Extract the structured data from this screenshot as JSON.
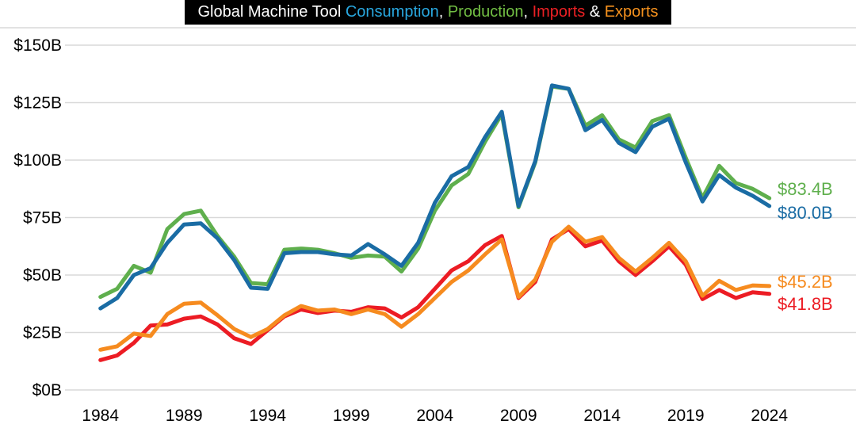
{
  "title": {
    "segments": [
      {
        "text": "Global Machine Tool ",
        "color": "#FFFFFF"
      },
      {
        "text": "Consumption",
        "color": "#29A8E0"
      },
      {
        "text": ", ",
        "color": "#FFFFFF"
      },
      {
        "text": "Production",
        "color": "#72BF44"
      },
      {
        "text": ", ",
        "color": "#FFFFFF"
      },
      {
        "text": "Imports",
        "color": "#EC2024"
      },
      {
        "text": " & ",
        "color": "#FFFFFF"
      },
      {
        "text": "Exports",
        "color": "#F6921E"
      }
    ],
    "background_color": "#000000"
  },
  "chart_data": {
    "type": "line",
    "x": [
      1984,
      1985,
      1986,
      1987,
      1988,
      1989,
      1990,
      1991,
      1992,
      1993,
      1994,
      1995,
      1996,
      1997,
      1998,
      1999,
      2000,
      2001,
      2002,
      2003,
      2004,
      2005,
      2006,
      2007,
      2008,
      2009,
      2010,
      2011,
      2012,
      2013,
      2014,
      2015,
      2016,
      2017,
      2018,
      2019,
      2020,
      2021,
      2022,
      2023,
      2024
    ],
    "series": [
      {
        "name": "Production",
        "color": "#5FAF4D",
        "end_label": "$83.4B",
        "values": [
          40.5,
          44,
          54,
          51,
          70,
          76.5,
          78,
          67,
          58,
          46.5,
          46,
          61,
          61.5,
          61,
          59.5,
          57.5,
          58.5,
          58,
          51.5,
          61.5,
          78,
          89,
          94,
          108,
          120,
          79.5,
          99,
          132,
          131,
          115,
          119.5,
          109,
          105.5,
          117,
          119.5,
          101,
          83.5,
          97.5,
          90,
          87.5,
          83.4
        ]
      },
      {
        "name": "Consumption",
        "color": "#1A6CA4",
        "end_label": "$80.0B",
        "values": [
          35.5,
          40,
          50,
          53,
          64,
          72,
          72.5,
          66,
          56.5,
          44.5,
          44,
          59.5,
          60,
          60,
          59,
          58.5,
          63.5,
          59,
          54,
          64,
          81.5,
          93,
          97,
          110,
          121,
          80,
          99.5,
          132.5,
          131,
          113,
          117.5,
          107.5,
          103.5,
          114.5,
          118,
          99,
          82,
          93.5,
          88,
          84.5,
          80
        ]
      },
      {
        "name": "Imports",
        "color": "#EC1C24",
        "end_label": "$41.8B",
        "values": [
          13,
          15,
          20.5,
          28,
          28.5,
          31,
          32,
          28.5,
          22.5,
          20,
          26,
          32,
          35,
          33.5,
          34.5,
          34,
          36,
          35.5,
          31.5,
          36,
          44,
          52,
          56,
          63,
          67,
          40,
          47,
          65.5,
          70,
          62.5,
          65,
          56,
          50,
          56,
          62.5,
          54.5,
          39.5,
          43.5,
          40,
          42.5,
          41.8
        ]
      },
      {
        "name": "Exports",
        "color": "#F68B1F",
        "end_label": "$45.2B",
        "values": [
          17.5,
          19,
          24.5,
          23.5,
          33,
          37.5,
          38,
          32.5,
          26.5,
          23,
          26.5,
          32.5,
          36.5,
          34.5,
          35,
          33,
          35,
          33,
          27.5,
          33,
          40,
          47,
          52,
          59,
          65.5,
          40.5,
          48,
          64.5,
          71,
          64.5,
          66.5,
          57.5,
          51.5,
          57.5,
          64,
          56,
          41,
          47.5,
          43.5,
          45.5,
          45.2
        ]
      }
    ],
    "y_ticks": [
      {
        "label": "$150B",
        "value": 150
      },
      {
        "label": "$125B",
        "value": 125
      },
      {
        "label": "$100B",
        "value": 100
      },
      {
        "label": "$75B",
        "value": 75
      },
      {
        "label": "$50B",
        "value": 50
      },
      {
        "label": "$25B",
        "value": 25
      },
      {
        "label": "$0B",
        "value": 0
      }
    ],
    "x_ticks": [
      {
        "label": "1984",
        "year": 1984
      },
      {
        "label": "1989",
        "year": 1989
      },
      {
        "label": "1994",
        "year": 1994
      },
      {
        "label": "1999",
        "year": 1999
      },
      {
        "label": "2004",
        "year": 2004
      },
      {
        "label": "2009",
        "year": 2009
      },
      {
        "label": "2014",
        "year": 2014
      },
      {
        "label": "2019",
        "year": 2019
      },
      {
        "label": "2024",
        "year": 2024
      }
    ],
    "ylim": [
      0,
      150
    ],
    "xlim": [
      1984,
      2024
    ],
    "grid": true,
    "gridline_color": "#D9D9D9",
    "legend_position": "in-title"
  }
}
